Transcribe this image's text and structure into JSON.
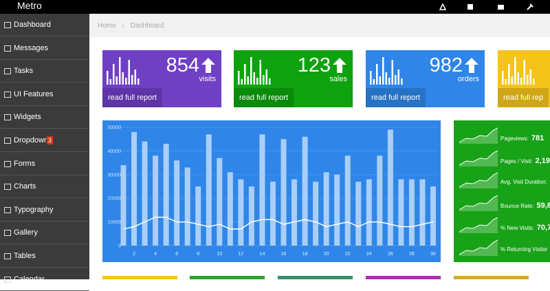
{
  "topbar": {
    "brand": "Metro"
  },
  "sidebar": {
    "items": [
      {
        "label": "Dashboard"
      },
      {
        "label": "Messages"
      },
      {
        "label": "Tasks"
      },
      {
        "label": "UI Features"
      },
      {
        "label": "Widgets"
      },
      {
        "label": "Dropdown",
        "badge": "3"
      },
      {
        "label": "Forms"
      },
      {
        "label": "Charts"
      },
      {
        "label": "Typography"
      },
      {
        "label": "Gallery"
      },
      {
        "label": "Tables"
      },
      {
        "label": "Calendar"
      }
    ]
  },
  "breadcrumb": [
    "Home",
    "Dashboard"
  ],
  "tiles": [
    {
      "number": "854",
      "unit": "visits",
      "link": "read full report"
    },
    {
      "number": "123",
      "unit": "sales",
      "link": "read full report"
    },
    {
      "number": "982",
      "unit": "orders",
      "link": "read full report"
    },
    {
      "link": "read full rep"
    }
  ],
  "main_chart": {
    "type": "bar",
    "x": [
      1,
      2,
      3,
      4,
      5,
      6,
      7,
      8,
      9,
      10,
      11,
      12,
      13,
      14,
      15,
      16,
      17,
      18,
      19,
      20,
      21,
      22,
      23,
      24,
      25,
      26,
      27,
      28,
      29,
      30
    ],
    "series": [
      {
        "color": "#a9cef7",
        "values": [
          34000,
          48000,
          44000,
          38000,
          43000,
          36000,
          33000,
          25000,
          47000,
          37000,
          31000,
          28000,
          25000,
          47000,
          27000,
          45000,
          28000,
          46000,
          27000,
          31000,
          30000,
          38000,
          27000,
          28000,
          38000,
          49000,
          28000,
          28000,
          28000,
          25000
        ]
      },
      {
        "color": "#ffffff",
        "values": [
          7000,
          8000,
          10000,
          12000,
          12000,
          10000,
          10000,
          9000,
          8000,
          9000,
          7000,
          7000,
          10000,
          11000,
          11000,
          9000,
          10000,
          11000,
          10000,
          8000,
          9000,
          10000,
          8000,
          10000,
          10000,
          9000,
          8000,
          8000,
          9000,
          10000
        ]
      }
    ],
    "xlim": [
      1,
      30
    ],
    "xticks": [
      2,
      4,
      6,
      8,
      10,
      12,
      14,
      16,
      18,
      20,
      22,
      24,
      26,
      28,
      30
    ],
    "ylim": [
      0,
      50000
    ],
    "yticks": [
      0,
      10000,
      20000,
      30000,
      40000,
      50000
    ]
  },
  "stats": [
    {
      "label": "Pageviews:",
      "value": "781"
    },
    {
      "label": "Pages / Visit:",
      "value": "2,19"
    },
    {
      "label": "Avg. Visit Duration:"
    },
    {
      "label": "Bounce Rate:",
      "value": "59,8"
    },
    {
      "label": "% New Visits:",
      "value": "70,7"
    },
    {
      "label": "% Returning Visitor"
    }
  ]
}
